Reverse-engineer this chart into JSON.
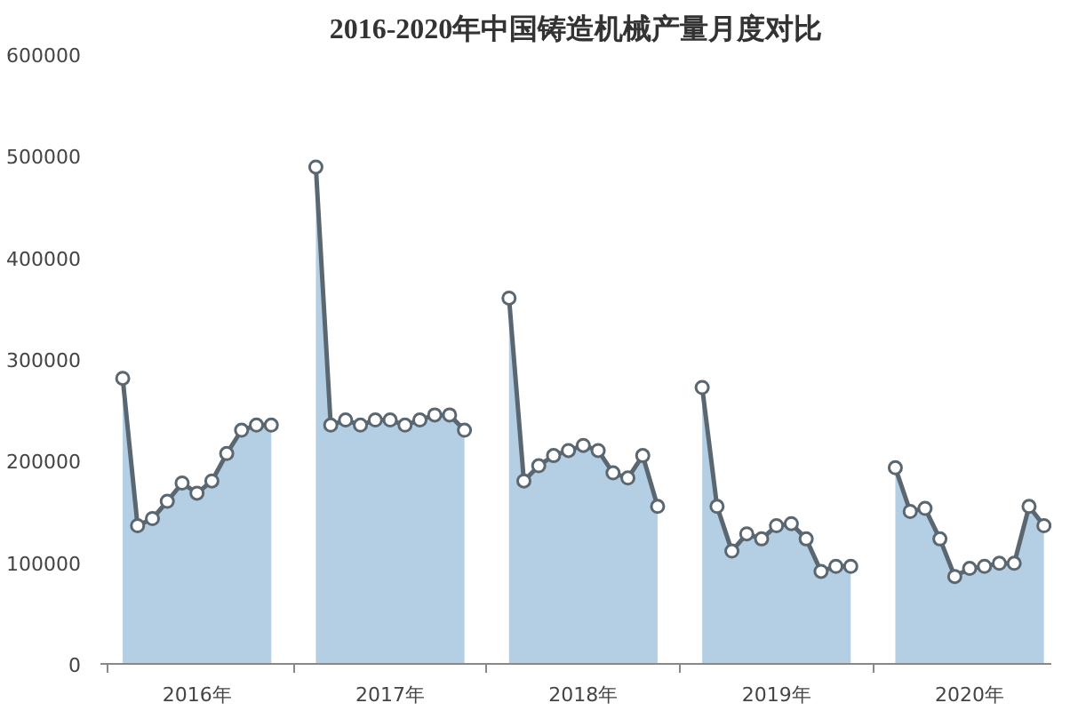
{
  "chart_data": {
    "type": "area",
    "title": "2016-2020年中国铸造机械产量月度对比",
    "categories": [
      null,
      null,
      null,
      null,
      null,
      "2016年",
      null,
      null,
      null,
      null,
      null,
      null,
      null,
      null,
      null,
      null,
      null,
      null,
      "2017年",
      null,
      null,
      null,
      null,
      null,
      null,
      null,
      null,
      null,
      null,
      null,
      null,
      "2018年",
      null,
      null,
      null,
      null,
      null,
      null,
      null,
      null,
      null,
      null,
      null,
      null,
      "2019年",
      null,
      null,
      null,
      null,
      null,
      null,
      null,
      null,
      null,
      null,
      null,
      null,
      "2020年",
      null,
      null,
      null,
      null,
      null
    ],
    "series": [
      {
        "color": "#b4cfe3",
        "values": [
          281000,
          136000,
          143000,
          160000,
          178000,
          168000,
          180000,
          207000,
          230000,
          235000,
          235000,
          null,
          null,
          489000,
          235000,
          240000,
          235000,
          240000,
          240000,
          235000,
          240000,
          245000,
          245000,
          230000,
          null,
          null,
          360000,
          180000,
          195000,
          205000,
          210000,
          215000,
          210000,
          188000,
          183000,
          205000,
          155000,
          null,
          null,
          272000,
          155000,
          111000,
          128000,
          123000,
          136000,
          138000,
          123000,
          91000,
          96000,
          96000,
          null,
          null,
          193000,
          150000,
          153000,
          123000,
          86000,
          94000,
          96000,
          99000,
          99000,
          155000,
          136000
        ]
      }
    ],
    "ylim": [
      0,
      600000
    ],
    "yticks": [
      0,
      100000,
      200000,
      300000,
      400000,
      500000,
      600000
    ],
    "grid": false,
    "marker": "circle",
    "line_style": "solid"
  }
}
